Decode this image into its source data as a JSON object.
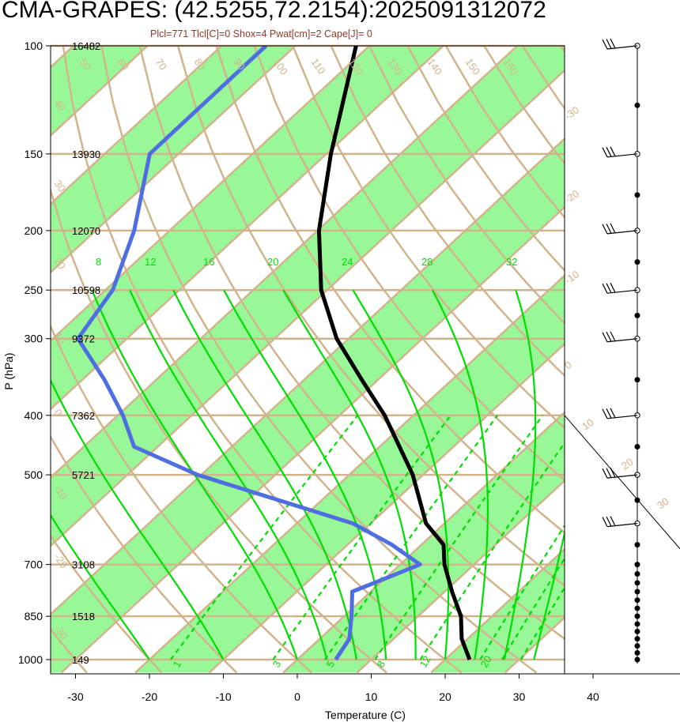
{
  "title": "CMA-GRAPES: (42.5255,72.2154):2025091312072",
  "subtitle": "Plcl=771 Tlcl[C]=0 Shox=4 Pwat[cm]=2 Cape[J]= 0",
  "colors": {
    "band_green": "#98f898",
    "isotherm_tan": "#d2b48c",
    "isobar_tan": "#d2b48c",
    "mixing_ratio_green": "#00dd00",
    "moist_adiabat_green": "#00dd00",
    "temperature_line": "#000000",
    "dewpoint_line": "#4f6fe0",
    "subtitle_text": "#8b3a2a"
  },
  "chart_data": {
    "type": "skew-t",
    "xlabel": "Temperature (C)",
    "ylabel": "P (hPa)",
    "x_ticks": [
      -30,
      -20,
      -10,
      0,
      10,
      20,
      30,
      40
    ],
    "p_levels": [
      100,
      150,
      200,
      250,
      300,
      400,
      500,
      700,
      850,
      1000
    ],
    "heights": [
      {
        "p": 100,
        "h": "16482"
      },
      {
        "p": 150,
        "h": "13930"
      },
      {
        "p": 200,
        "h": "12070"
      },
      {
        "p": 250,
        "h": "10598"
      },
      {
        "p": 300,
        "h": "9372"
      },
      {
        "p": 400,
        "h": "7362"
      },
      {
        "p": 500,
        "h": "5721"
      },
      {
        "p": 700,
        "h": "3108"
      },
      {
        "p": 850,
        "h": "1518"
      },
      {
        "p": 1000,
        "h": "149"
      }
    ],
    "isotherm_labels_top": [
      "50",
      "60",
      "70",
      "80",
      "90",
      "100",
      "110",
      "120",
      "130",
      "140",
      "150",
      "160"
    ],
    "isotherm_labels_left": [
      "40",
      "30",
      "20",
      "10",
      "0",
      "-10",
      "-20",
      "-30"
    ],
    "isotherm_labels_right": [
      "-30",
      "-20",
      "-10",
      "0",
      "10",
      "20",
      "30"
    ],
    "moist_adiabat_labels": [
      "8",
      "12",
      "16",
      "20",
      "24",
      "28",
      "32"
    ],
    "mixing_ratio_labels": [
      "1",
      "3",
      "5",
      "8",
      "12",
      "20"
    ],
    "temperature_profile": [
      {
        "p": 1000,
        "t": 23.3
      },
      {
        "p": 925,
        "t": 19.2
      },
      {
        "p": 850,
        "t": 15.8
      },
      {
        "p": 775,
        "t": 11.0
      },
      {
        "p": 700,
        "t": 6.0
      },
      {
        "p": 650,
        "t": 3.0
      },
      {
        "p": 600,
        "t": -2.5
      },
      {
        "p": 500,
        "t": -11.4
      },
      {
        "p": 400,
        "t": -23.9
      },
      {
        "p": 350,
        "t": -32.2
      },
      {
        "p": 300,
        "t": -41.6
      },
      {
        "p": 250,
        "t": -50.8
      },
      {
        "p": 200,
        "t": -59.8
      },
      {
        "p": 150,
        "t": -69.4
      },
      {
        "p": 100,
        "t": -81.8
      }
    ],
    "dewpoint_profile": [
      {
        "p": 1000,
        "td": 5.2
      },
      {
        "p": 925,
        "td": 4.0
      },
      {
        "p": 850,
        "td": 1.0
      },
      {
        "p": 775,
        "td": -2.5
      },
      {
        "p": 700,
        "td": 2.7
      },
      {
        "p": 650,
        "td": -4.0
      },
      {
        "p": 600,
        "td": -12.4
      },
      {
        "p": 500,
        "td": -40.5
      },
      {
        "p": 450,
        "td": -53.2
      },
      {
        "p": 400,
        "td": -59.3
      },
      {
        "p": 350,
        "td": -67.0
      },
      {
        "p": 300,
        "td": -76.6
      },
      {
        "p": 250,
        "td": -79.0
      },
      {
        "p": 200,
        "td": -84.8
      },
      {
        "p": 150,
        "td": -93.9
      },
      {
        "p": 100,
        "td": -94.0
      }
    ],
    "wind_barb_levels": [
      100,
      150,
      200,
      250,
      300,
      400,
      500,
      600
    ],
    "wind_profile_dots": [
      100,
      125,
      150,
      175,
      200,
      225,
      250,
      275,
      300,
      350,
      400,
      450,
      500,
      550,
      600,
      650,
      700,
      725,
      750,
      775,
      800,
      825,
      850,
      875,
      900,
      925,
      950,
      975,
      1000
    ]
  }
}
